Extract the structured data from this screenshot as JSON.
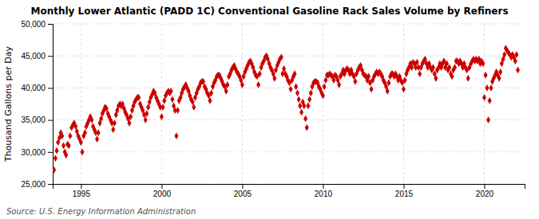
{
  "chart_data": {
    "type": "scatter",
    "title": "Monthly Lower Atlantic (PADD 1C) Conventional Gasoline Rack Sales Volume by Refiners",
    "ylabel": "Thousand Gallons per Day",
    "annotations": [
      "Source: U.S. Energy Information Administration"
    ],
    "color": "#CC0000",
    "marker": "diamond",
    "grid": true,
    "xlim": [
      1993.25,
      2022.5
    ],
    "xticks": [
      1995,
      2000,
      2005,
      2010,
      2015,
      2020
    ],
    "ylim": [
      25000,
      50000
    ],
    "yticks": [
      {
        "value": 25000,
        "label": "25,000"
      },
      {
        "value": 30000,
        "label": "30,000"
      },
      {
        "value": 35000,
        "label": "35,000"
      },
      {
        "value": 40000,
        "label": "40,000"
      },
      {
        "value": 45000,
        "label": "45,000"
      },
      {
        "value": 50000,
        "label": "50,000"
      }
    ],
    "x": [
      1993.33,
      1993.42,
      1993.5,
      1993.58,
      1993.67,
      1993.75,
      1993.83,
      1993.92,
      1994.0,
      1994.08,
      1994.17,
      1994.25,
      1994.33,
      1994.42,
      1994.5,
      1994.58,
      1994.67,
      1994.75,
      1994.83,
      1994.92,
      1995.0,
      1995.08,
      1995.17,
      1995.25,
      1995.33,
      1995.42,
      1995.5,
      1995.58,
      1995.67,
      1995.75,
      1995.83,
      1995.92,
      1996.0,
      1996.08,
      1996.17,
      1996.25,
      1996.33,
      1996.42,
      1996.5,
      1996.58,
      1996.67,
      1996.75,
      1996.83,
      1996.92,
      1997.0,
      1997.08,
      1997.17,
      1997.25,
      1997.33,
      1997.42,
      1997.5,
      1997.58,
      1997.67,
      1997.75,
      1997.83,
      1997.92,
      1998.0,
      1998.08,
      1998.17,
      1998.25,
      1998.33,
      1998.42,
      1998.5,
      1998.58,
      1998.67,
      1998.75,
      1998.83,
      1998.92,
      1999.0,
      1999.08,
      1999.17,
      1999.25,
      1999.33,
      1999.42,
      1999.5,
      1999.58,
      1999.67,
      1999.75,
      1999.83,
      1999.92,
      2000.0,
      2000.08,
      2000.17,
      2000.25,
      2000.33,
      2000.42,
      2000.5,
      2000.58,
      2000.67,
      2000.75,
      2000.83,
      2000.92,
      2001.0,
      2001.08,
      2001.17,
      2001.25,
      2001.33,
      2001.42,
      2001.5,
      2001.58,
      2001.67,
      2001.75,
      2001.83,
      2001.92,
      2002.0,
      2002.08,
      2002.17,
      2002.25,
      2002.33,
      2002.42,
      2002.5,
      2002.58,
      2002.67,
      2002.75,
      2002.83,
      2002.92,
      2003.0,
      2003.08,
      2003.17,
      2003.25,
      2003.33,
      2003.42,
      2003.5,
      2003.58,
      2003.67,
      2003.75,
      2003.83,
      2003.92,
      2004.0,
      2004.08,
      2004.17,
      2004.25,
      2004.33,
      2004.42,
      2004.5,
      2004.58,
      2004.67,
      2004.75,
      2004.83,
      2004.92,
      2005.0,
      2005.08,
      2005.17,
      2005.25,
      2005.33,
      2005.42,
      2005.5,
      2005.58,
      2005.67,
      2005.75,
      2005.83,
      2005.92,
      2006.0,
      2006.08,
      2006.17,
      2006.25,
      2006.33,
      2006.42,
      2006.5,
      2006.58,
      2006.67,
      2006.75,
      2006.83,
      2006.92,
      2007.0,
      2007.08,
      2007.17,
      2007.25,
      2007.33,
      2007.42,
      2007.5,
      2007.58,
      2007.67,
      2007.75,
      2007.83,
      2007.92,
      2008.0,
      2008.08,
      2008.17,
      2008.25,
      2008.33,
      2008.42,
      2008.5,
      2008.58,
      2008.67,
      2008.75,
      2008.83,
      2008.92,
      2009.0,
      2009.08,
      2009.17,
      2009.25,
      2009.33,
      2009.42,
      2009.5,
      2009.58,
      2009.67,
      2009.75,
      2009.83,
      2009.92,
      2010.0,
      2010.08,
      2010.17,
      2010.25,
      2010.33,
      2010.42,
      2010.5,
      2010.58,
      2010.67,
      2010.75,
      2010.83,
      2010.92,
      2011.0,
      2011.08,
      2011.17,
      2011.25,
      2011.33,
      2011.42,
      2011.5,
      2011.58,
      2011.67,
      2011.75,
      2011.83,
      2011.92,
      2012.0,
      2012.08,
      2012.17,
      2012.25,
      2012.33,
      2012.42,
      2012.5,
      2012.58,
      2012.67,
      2012.75,
      2012.83,
      2012.92,
      2013.0,
      2013.08,
      2013.17,
      2013.25,
      2013.33,
      2013.42,
      2013.5,
      2013.58,
      2013.67,
      2013.75,
      2013.83,
      2013.92,
      2014.0,
      2014.08,
      2014.17,
      2014.25,
      2014.33,
      2014.42,
      2014.5,
      2014.58,
      2014.67,
      2014.75,
      2014.83,
      2014.92,
      2015.0,
      2015.08,
      2015.17,
      2015.25,
      2015.33,
      2015.42,
      2015.5,
      2015.58,
      2015.67,
      2015.75,
      2015.83,
      2015.92,
      2016.0,
      2016.08,
      2016.17,
      2016.25,
      2016.33,
      2016.42,
      2016.5,
      2016.58,
      2016.67,
      2016.75,
      2016.83,
      2016.92,
      2017.0,
      2017.08,
      2017.17,
      2017.25,
      2017.33,
      2017.42,
      2017.5,
      2017.58,
      2017.67,
      2017.75,
      2017.83,
      2017.92,
      2018.0,
      2018.08,
      2018.17,
      2018.25,
      2018.33,
      2018.42,
      2018.5,
      2018.58,
      2018.67,
      2018.75,
      2018.83,
      2018.92,
      2019.0,
      2019.08,
      2019.17,
      2019.25,
      2019.33,
      2019.42,
      2019.5,
      2019.58,
      2019.67,
      2019.75,
      2019.83,
      2019.92,
      2020.0,
      2020.08,
      2020.17,
      2020.25,
      2020.33,
      2020.42,
      2020.5,
      2020.58,
      2020.67,
      2020.75,
      2020.83,
      2020.92,
      2021.0,
      2021.08,
      2021.17,
      2021.25,
      2021.33,
      2021.42,
      2021.5,
      2021.58,
      2021.67,
      2021.75,
      2021.83,
      2021.92,
      2022.0,
      2022.08
    ],
    "values": [
      27200,
      29000,
      30200,
      31500,
      32200,
      33000,
      32500,
      31000,
      30000,
      29500,
      31200,
      31000,
      32500,
      33800,
      34200,
      34500,
      34000,
      33200,
      32500,
      32000,
      31500,
      30000,
      32500,
      33000,
      34000,
      34500,
      35000,
      35500,
      35000,
      34000,
      33500,
      33000,
      32000,
      33000,
      34500,
      35200,
      36000,
      36500,
      37000,
      36800,
      36000,
      35500,
      35000,
      34500,
      33500,
      34500,
      35800,
      36500,
      37200,
      37500,
      37200,
      37500,
      36800,
      36200,
      35800,
      35200,
      34500,
      35500,
      36500,
      37200,
      37800,
      38200,
      38500,
      38500,
      37500,
      37000,
      36500,
      35800,
      35000,
      36000,
      37000,
      37800,
      38500,
      39000,
      39500,
      39200,
      38500,
      38000,
      37500,
      37000,
      35500,
      37000,
      38000,
      38800,
      39200,
      39500,
      39200,
      39500,
      38200,
      37200,
      36500,
      32500,
      36500,
      38000,
      38500,
      39200,
      39800,
      40200,
      40500,
      40000,
      39500,
      38800,
      38200,
      37800,
      37000,
      38500,
      39200,
      39800,
      40200,
      40800,
      41000,
      41000,
      40200,
      39800,
      39200,
      38800,
      38000,
      39200,
      40200,
      40800,
      41200,
      41800,
      42000,
      42000,
      41500,
      41000,
      40500,
      40200,
      39500,
      40500,
      41800,
      42200,
      42800,
      43200,
      43500,
      43000,
      42500,
      42200,
      41800,
      41200,
      40500,
      41800,
      42500,
      43000,
      43500,
      44000,
      44200,
      43800,
      43200,
      42500,
      42000,
      41800,
      40500,
      42200,
      43200,
      43800,
      44200,
      44800,
      45000,
      44500,
      43800,
      43200,
      42800,
      42200,
      41500,
      42800,
      43500,
      44000,
      44500,
      44800,
      42200,
      43000,
      42200,
      41800,
      41200,
      40800,
      39800,
      41200,
      41800,
      42200,
      40200,
      39200,
      38200,
      37200,
      36200,
      37800,
      37200,
      35200,
      33800,
      37200,
      38200,
      39200,
      40200,
      40800,
      41000,
      41000,
      40800,
      40200,
      39800,
      39200,
      38800,
      40200,
      41200,
      42000,
      42000,
      42200,
      42000,
      41800,
      41200,
      42000,
      41800,
      41200,
      40500,
      41800,
      42200,
      42800,
      42200,
      42800,
      43000,
      42800,
      42200,
      42800,
      42200,
      41800,
      41000,
      42200,
      42800,
      43200,
      43500,
      42800,
      42200,
      42000,
      41800,
      41200,
      41800,
      40800,
      39800,
      41200,
      41800,
      42200,
      42500,
      42200,
      42500,
      42200,
      41800,
      41200,
      40800,
      40200,
      39500,
      40800,
      41800,
      42200,
      42200,
      41800,
      42200,
      41800,
      41200,
      41800,
      41200,
      40800,
      39800,
      41200,
      42200,
      42800,
      43200,
      43800,
      43200,
      44000,
      43800,
      43200,
      44000,
      43200,
      42200,
      43200,
      43800,
      44200,
      44500,
      43800,
      43200,
      43800,
      43200,
      42800,
      43200,
      42200,
      41500,
      42800,
      43200,
      43800,
      43200,
      43800,
      44200,
      43200,
      43800,
      42800,
      43200,
      42200,
      41800,
      42800,
      43200,
      44200,
      44200,
      43800,
      44200,
      43800,
      43200,
      43800,
      43200,
      42800,
      41500,
      43200,
      43800,
      44200,
      44500,
      44200,
      44500,
      44200,
      44500,
      43800,
      44200,
      43800,
      38500,
      42000,
      40000,
      35000,
      38000,
      40000,
      41000,
      41500,
      42000,
      42500,
      42000,
      41500,
      42500,
      43800,
      44500,
      45200,
      46200,
      45800,
      45500,
      45200,
      44800,
      45200,
      44800,
      44200,
      45200,
      42800
    ]
  }
}
